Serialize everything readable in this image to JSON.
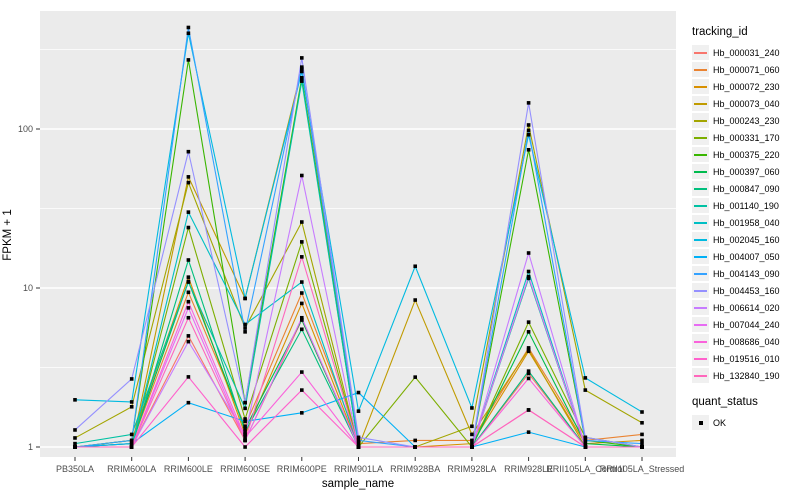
{
  "chart_data": {
    "type": "line",
    "title": "",
    "xlabel": "sample_name",
    "ylabel": "FPKM + 1",
    "y_scale": "log10",
    "y_tick_labels": [
      "1",
      "10",
      "100"
    ],
    "y_tick_values": [
      1,
      10,
      100
    ],
    "y_minor_values": [
      3.162,
      31.62,
      316.2
    ],
    "ylim": [
      0.85,
      550
    ],
    "grid": true,
    "legend_position": "right",
    "panel_bg": "#EBEBEB",
    "grid_color": "#FFFFFF",
    "tick_text_color": "#4D4D4D",
    "marker": {
      "shape": "square",
      "color": "#000000",
      "size": 3.6
    },
    "categories": [
      "PB350LA",
      "RRIM600LA",
      "RRIM600LE",
      "RRIM600SE",
      "RRIM600PE",
      "RRIM901LA",
      "RRIM928BA",
      "RRIM928LA",
      "RRIM928LE",
      "RRII105LA_Control",
      "RRII105LA_Stressed"
    ],
    "legend": {
      "title": "tracking_id"
    },
    "legend2": {
      "title": "quant_status",
      "items": [
        {
          "label": "OK",
          "marker": "square",
          "color": "#000000"
        }
      ]
    },
    "series": [
      {
        "name": "Hb_000031_240",
        "color": "#F8766D",
        "values": [
          1.0,
          1.0,
          5.0,
          1.1,
          6.3,
          1.0,
          1.0,
          1.0,
          2.9,
          1.0,
          1.0
        ]
      },
      {
        "name": "Hb_000071_060",
        "color": "#EA8331",
        "values": [
          1.0,
          1.05,
          9.4,
          1.35,
          9.3,
          1.05,
          1.1,
          1.1,
          4.2,
          1.1,
          1.2
        ]
      },
      {
        "name": "Hb_000072_230",
        "color": "#D89000",
        "values": [
          1.0,
          1.1,
          11.7,
          1.2,
          8.0,
          1.0,
          1.0,
          1.05,
          4.0,
          1.05,
          1.1
        ]
      },
      {
        "name": "Hb_000073_040",
        "color": "#C09B00",
        "values": [
          1.0,
          1.0,
          50.0,
          8.6,
          240.0,
          1.0,
          8.4,
          1.2,
          4.1,
          1.0,
          1.0
        ]
      },
      {
        "name": "Hb_000243_230",
        "color": "#A3A500",
        "values": [
          1.14,
          1.79,
          46.0,
          5.6,
          26.0,
          1.0,
          1.0,
          1.35,
          106.0,
          2.28,
          1.42
        ]
      },
      {
        "name": "Hb_000331_170",
        "color": "#7CAE00",
        "values": [
          1.0,
          1.0,
          24.0,
          1.5,
          19.5,
          1.0,
          2.75,
          1.0,
          6.1,
          1.15,
          1.0
        ]
      },
      {
        "name": "Hb_000375_220",
        "color": "#39B600",
        "values": [
          1.0,
          1.1,
          272.0,
          1.9,
          210.0,
          1.0,
          1.0,
          1.0,
          74.0,
          1.1,
          1.0
        ]
      },
      {
        "name": "Hb_000397_060",
        "color": "#00BB4E",
        "values": [
          1.0,
          1.05,
          11.0,
          1.3,
          6.3,
          1.0,
          1.0,
          1.0,
          5.3,
          1.05,
          1.0
        ]
      },
      {
        "name": "Hb_000847_090",
        "color": "#00BF7D",
        "values": [
          1.0,
          1.0,
          15.0,
          1.25,
          5.5,
          1.0,
          1.0,
          1.0,
          3.0,
          1.0,
          1.0
        ]
      },
      {
        "name": "Hb_001140_190",
        "color": "#00C1A3",
        "values": [
          1.05,
          1.2,
          10.9,
          1.75,
          200.0,
          1.0,
          1.0,
          1.0,
          11.5,
          1.0,
          1.0
        ]
      },
      {
        "name": "Hb_001958_040",
        "color": "#00BFC4",
        "values": [
          1.0,
          1.0,
          30.0,
          5.9,
          10.9,
          1.0,
          1.0,
          1.0,
          12.7,
          1.0,
          1.0
        ]
      },
      {
        "name": "Hb_002045_160",
        "color": "#00BAE0",
        "values": [
          1.98,
          1.92,
          400.0,
          8.6,
          230.0,
          1.68,
          13.7,
          1.76,
          92.0,
          2.72,
          1.66
        ]
      },
      {
        "name": "Hb_004007_050",
        "color": "#00B0F6",
        "values": [
          1.0,
          1.05,
          1.9,
          1.45,
          1.64,
          2.2,
          1.0,
          1.0,
          1.24,
          1.0,
          1.0
        ]
      },
      {
        "name": "Hb_004143_090",
        "color": "#35A2FF",
        "values": [
          1.0,
          1.1,
          435.0,
          5.3,
          245.0,
          1.1,
          1.0,
          1.0,
          98.0,
          1.1,
          1.05
        ]
      },
      {
        "name": "Hb_004453_160",
        "color": "#9590FF",
        "values": [
          1.28,
          2.68,
          72.0,
          1.9,
          280.0,
          1.15,
          1.0,
          1.0,
          146.0,
          1.15,
          1.0
        ]
      },
      {
        "name": "Hb_006614_020",
        "color": "#C77CFF",
        "values": [
          1.0,
          1.0,
          4.6,
          1.2,
          51.0,
          1.0,
          1.0,
          1.0,
          16.6,
          1.0,
          1.0
        ]
      },
      {
        "name": "Hb_007044_240",
        "color": "#E76BF3",
        "values": [
          1.0,
          1.0,
          7.5,
          1.1,
          6.5,
          1.0,
          1.0,
          1.0,
          11.8,
          1.0,
          1.0
        ]
      },
      {
        "name": "Hb_008686_040",
        "color": "#FA62DB",
        "values": [
          1.0,
          1.0,
          8.2,
          1.15,
          2.96,
          1.0,
          1.0,
          1.0,
          2.7,
          1.0,
          1.0
        ]
      },
      {
        "name": "Hb_019516_010",
        "color": "#FF61CC",
        "values": [
          1.0,
          1.0,
          2.76,
          1.0,
          2.28,
          1.0,
          1.0,
          1.0,
          1.71,
          1.0,
          1.0
        ]
      },
      {
        "name": "Hb_132840_190",
        "color": "#FF67BC",
        "values": [
          1.0,
          1.0,
          6.5,
          1.1,
          15.7,
          1.0,
          1.0,
          1.0,
          1.71,
          1.0,
          1.0
        ]
      }
    ]
  }
}
